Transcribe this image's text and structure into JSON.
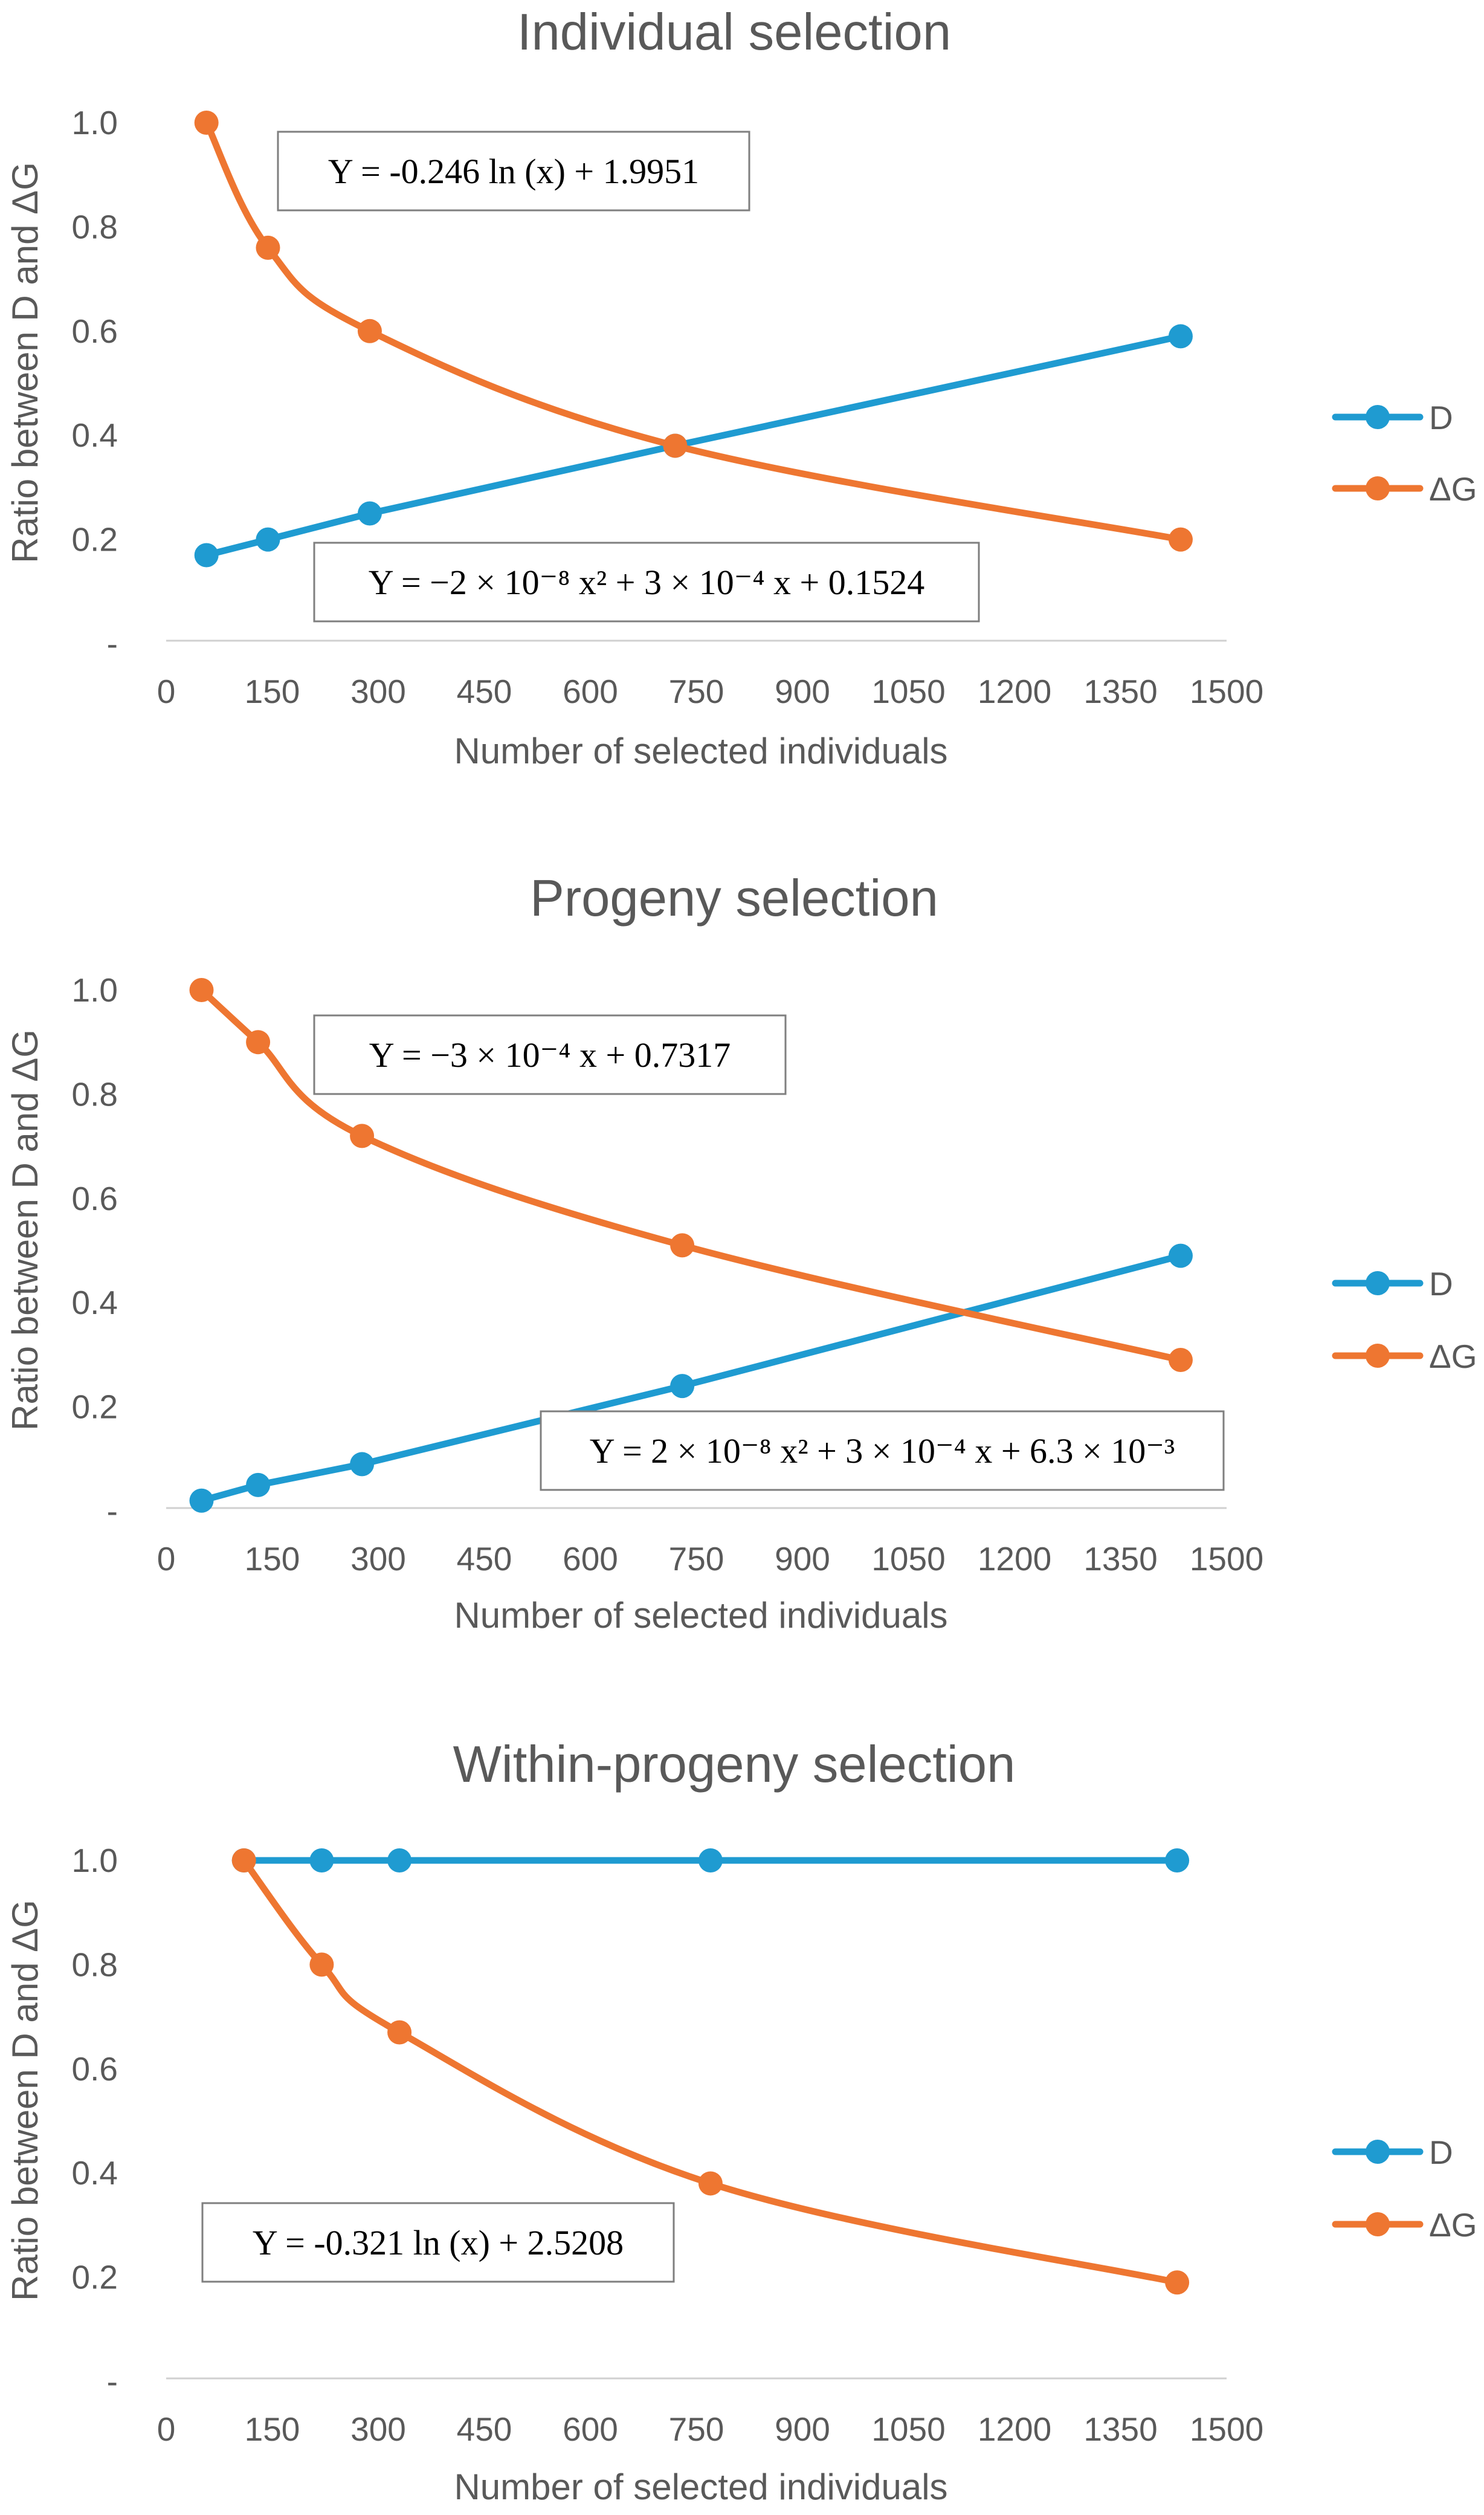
{
  "chart_data": [
    {
      "type": "line",
      "title": "Individual selection",
      "xlabel": "Number of selected individuals",
      "ylabel": "Ratio between D and ΔG",
      "xlim": [
        0,
        1500
      ],
      "ylim": [
        0,
        1.0
      ],
      "xticks": [
        "0",
        "150",
        "300",
        "450",
        "600",
        "750",
        "900",
        "1050",
        "1200",
        "1350",
        "1500"
      ],
      "yticks": [
        "-",
        "0.2",
        "0.4",
        "0.6",
        "0.8",
        "1.0"
      ],
      "grid": false,
      "legend_position": "right",
      "series": [
        {
          "name": "D",
          "color": "#1F9BD1",
          "smooth": false,
          "x": [
            57,
            144,
            288,
            720,
            1435
          ],
          "y": [
            0.17,
            0.2,
            0.25,
            0.38,
            0.59
          ]
        },
        {
          "name": "ΔG",
          "color": "#EE7631",
          "smooth": true,
          "x": [
            57,
            144,
            288,
            720,
            1435
          ],
          "y": [
            1.0,
            0.76,
            0.6,
            0.38,
            0.2
          ]
        }
      ],
      "equations": [
        {
          "text": "Y = -0.246 ln (x) + 1.9951"
        },
        {
          "text": "Y = −2 × 10⁻⁸ x² + 3 × 10⁻⁴ x + 0.1524"
        }
      ]
    },
    {
      "type": "line",
      "title": "Progeny selection",
      "xlabel": "Number of selected individuals",
      "ylabel": "Ratio between D and ΔG",
      "xlim": [
        0,
        1500
      ],
      "ylim": [
        0,
        1.0
      ],
      "xticks": [
        "0",
        "150",
        "300",
        "450",
        "600",
        "750",
        "900",
        "1050",
        "1200",
        "1350",
        "1500"
      ],
      "yticks": [
        "-",
        "0.2",
        "0.4",
        "0.6",
        "0.8",
        "1.0"
      ],
      "grid": false,
      "legend_position": "right",
      "series": [
        {
          "name": "D",
          "color": "#1F9BD1",
          "smooth": false,
          "x": [
            50,
            130,
            277,
            730,
            1435
          ],
          "y": [
            0.02,
            0.05,
            0.09,
            0.24,
            0.49
          ]
        },
        {
          "name": "ΔG",
          "color": "#EE7631",
          "smooth": true,
          "x": [
            50,
            130,
            277,
            730,
            1435
          ],
          "y": [
            1.0,
            0.9,
            0.72,
            0.51,
            0.29
          ]
        }
      ],
      "equations": [
        {
          "text": "Y = −3 × 10⁻⁴ x + 0.7317"
        },
        {
          "text": "Y = 2 × 10⁻⁸ x² + 3 × 10⁻⁴ x + 6.3 × 10⁻³"
        }
      ]
    },
    {
      "type": "line",
      "title": "Within-progeny selection",
      "xlabel": "Number of selected individuals",
      "ylabel": "Ratio between D and ΔG",
      "xlim": [
        0,
        1500
      ],
      "ylim": [
        0,
        1.0
      ],
      "xticks": [
        "0",
        "150",
        "300",
        "450",
        "600",
        "750",
        "900",
        "1050",
        "1200",
        "1350",
        "1500"
      ],
      "yticks": [
        "-",
        "0.2",
        "0.4",
        "0.6",
        "0.8",
        "1.0"
      ],
      "grid": false,
      "legend_position": "right",
      "series": [
        {
          "name": "D",
          "color": "#1F9BD1",
          "smooth": false,
          "x": [
            110,
            220,
            330,
            770,
            1430
          ],
          "y": [
            1.0,
            1.0,
            1.0,
            1.0,
            1.0
          ]
        },
        {
          "name": "ΔG",
          "color": "#EE7631",
          "smooth": true,
          "x": [
            110,
            220,
            330,
            770,
            1430
          ],
          "y": [
            1.0,
            0.8,
            0.67,
            0.38,
            0.19
          ]
        }
      ],
      "equations": [
        {
          "text": "Y = -0.321 ln (x) + 2.5208"
        }
      ]
    }
  ]
}
